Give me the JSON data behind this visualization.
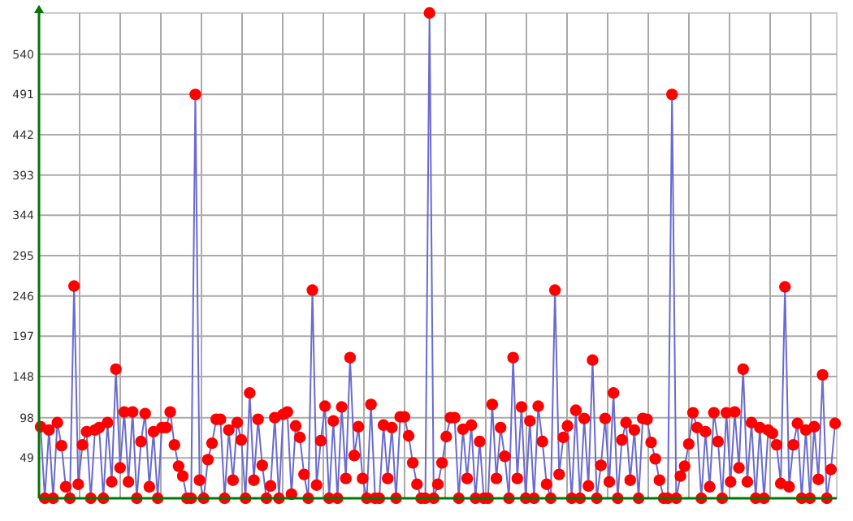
{
  "chart_data": {
    "type": "line",
    "categories": [
      null,
      null,
      null,
      null,
      null,
      null,
      null,
      null,
      null,
      null,
      null,
      null,
      null,
      null,
      null,
      null,
      null,
      null,
      null,
      null,
      null,
      null,
      null,
      null,
      null,
      null,
      null,
      null,
      null,
      null,
      null,
      null,
      null,
      null,
      null,
      null,
      null,
      null,
      null,
      null,
      null,
      null,
      null,
      null,
      null,
      null,
      null,
      null,
      null,
      null,
      null,
      null,
      null,
      null,
      null,
      null,
      null,
      null,
      null,
      null,
      null,
      null,
      null,
      null,
      null,
      null,
      null,
      null,
      null,
      null,
      null,
      null,
      null,
      null,
      null,
      null,
      null,
      null,
      null,
      null,
      null,
      null,
      null,
      null,
      null,
      null,
      null,
      null,
      null,
      null,
      null,
      null,
      null,
      null,
      null,
      null,
      null,
      null,
      null,
      null,
      null,
      null,
      null,
      null,
      null,
      null,
      null,
      null,
      null,
      null,
      null,
      null,
      null,
      null,
      null,
      null,
      null,
      null,
      null,
      null,
      null,
      null,
      null,
      null,
      null,
      null,
      null,
      null,
      null,
      null,
      null,
      null,
      null,
      null,
      null,
      null,
      null,
      null,
      null,
      null,
      null,
      null,
      null,
      null,
      null,
      null,
      null,
      null,
      null,
      null,
      null,
      null,
      null,
      null,
      null,
      null,
      null,
      null,
      null,
      null,
      null,
      null,
      null,
      null,
      null,
      null,
      null,
      null,
      null,
      null,
      null,
      null,
      null,
      null,
      null,
      null,
      null,
      null,
      null,
      null,
      null,
      null,
      null,
      null,
      null,
      null,
      null,
      null,
      null,
      null,
      null
    ],
    "series": [
      {
        "color": "#ff0000",
        "values": [
          87,
          0,
          83,
          0,
          92,
          64,
          14,
          0,
          258,
          17,
          65,
          81,
          0,
          83,
          86,
          0,
          92,
          20,
          157,
          37,
          105,
          20,
          105,
          0,
          69,
          103,
          14,
          81,
          0,
          86,
          86,
          105,
          65,
          39,
          27,
          0,
          0,
          491,
          22,
          0,
          47,
          67,
          96,
          96,
          0,
          83,
          22,
          92,
          71,
          0,
          128,
          22,
          96,
          40,
          0,
          15,
          98,
          0,
          102,
          105,
          5,
          88,
          74,
          29,
          0,
          253,
          16,
          70,
          112,
          0,
          94,
          0,
          111,
          24,
          171,
          52,
          87,
          24,
          0,
          114,
          0,
          0,
          89,
          24,
          86,
          0,
          99,
          99,
          76,
          43,
          17,
          0,
          0,
          590,
          0,
          17,
          43,
          75,
          98,
          98,
          0,
          84,
          24,
          89,
          0,
          69,
          0,
          0,
          114,
          24,
          86,
          51,
          0,
          171,
          24,
          111,
          0,
          94,
          0,
          112,
          69,
          17,
          0,
          253,
          29,
          74,
          88,
          0,
          107,
          0,
          97,
          15,
          168,
          0,
          40,
          97,
          20,
          128,
          0,
          71,
          92,
          22,
          83,
          0,
          97,
          96,
          68,
          48,
          22,
          0,
          0,
          491,
          0,
          27,
          39,
          66,
          104,
          86,
          0,
          81,
          14,
          104,
          69,
          0,
          104,
          20,
          105,
          37,
          157,
          20,
          92,
          0,
          86,
          0,
          83,
          79,
          65,
          18,
          257,
          14,
          65,
          91,
          0,
          83,
          0,
          87,
          23,
          150,
          0,
          35,
          91
        ]
      }
    ],
    "marker": "circle",
    "grid": true,
    "tick_labels": "y",
    "ylim": [
      0,
      590
    ],
    "yticks": [
      49,
      98,
      148,
      197,
      246,
      295,
      344,
      393,
      442,
      491,
      540
    ]
  }
}
